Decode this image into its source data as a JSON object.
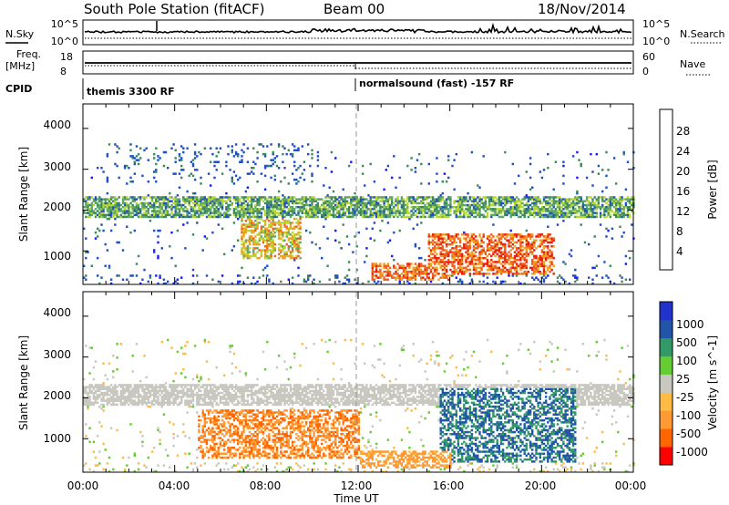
{
  "header": {
    "station": "South Pole Station (fitACF)",
    "beam": "Beam 00",
    "date": "18/Nov/2014"
  },
  "strip_labels": {
    "nsky": "N.Sky",
    "nsky_ticks": [
      "10^5",
      "10^0"
    ],
    "nsearch": "N.Search",
    "nsearch_ticks": [
      "10^5",
      "10^0"
    ],
    "freq_top": "Freq.",
    "freq_unit": "[MHz]",
    "freq_ticks": [
      "18",
      "8"
    ],
    "nave": "Nave",
    "nave_ticks": [
      "60",
      "0"
    ],
    "cpid": "CPID",
    "cpid_segments": [
      "themis 3300 RF",
      "normalsound (fast) -157 RF"
    ]
  },
  "axes": {
    "xlabel": "Time UT",
    "x_ticks": [
      "00:00",
      "04:00",
      "08:00",
      "12:00",
      "16:00",
      "20:00",
      "00:00"
    ],
    "ylabel": "Slant Range [km]",
    "y_ticks": [
      "1000",
      "2000",
      "3000",
      "4000"
    ],
    "power_label": "Power [dB]",
    "power_ticks": [
      "4",
      "8",
      "12",
      "16",
      "20",
      "24",
      "28"
    ],
    "velocity_label": "Velocity [m s^-1]",
    "velocity_ticks": [
      "-1000",
      "-500",
      "-100",
      "-25",
      "25",
      "100",
      "500",
      "1000"
    ]
  },
  "colors": {
    "power_scale": [
      "#1a1aff",
      "#2050c8",
      "#3e8a5c",
      "#5fa86a",
      "#b8d830",
      "#f0a020",
      "#f06020",
      "#e82010"
    ],
    "velocity_scale": [
      "#ff0000",
      "#ff6600",
      "#ff9933",
      "#ffbb44",
      "#c8c8c0",
      "#66cc33",
      "#339966",
      "#2255aa",
      "#2233cc"
    ],
    "background": "#ffffff"
  },
  "chart_data": [
    {
      "type": "heatmap",
      "title": "Power",
      "xlabel": "Time UT",
      "ylabel": "Slant Range [km]",
      "xlim": [
        0,
        24
      ],
      "ylim": [
        180,
        4600
      ],
      "colorbar": {
        "label": "Power [dB]",
        "range": [
          0,
          32
        ],
        "ticks": [
          4,
          8,
          12,
          16,
          20,
          24,
          28
        ]
      },
      "features": [
        {
          "name": "band_2000km",
          "t_start": 0.0,
          "t_end": 24.0,
          "range_km": [
            1800,
            2300
          ],
          "power_db": [
            6,
            20
          ]
        },
        {
          "name": "morning_patch",
          "t_start": 6.8,
          "t_end": 9.5,
          "range_km": [
            800,
            1800
          ],
          "power_db": [
            14,
            26
          ]
        },
        {
          "name": "near_range_post_noon",
          "t_start": 12.5,
          "t_end": 16.0,
          "range_km": [
            250,
            700
          ],
          "power_db": [
            20,
            30
          ]
        },
        {
          "name": "evening_patch",
          "t_start": 15.0,
          "t_end": 20.5,
          "range_km": [
            400,
            1400
          ],
          "power_db": [
            20,
            32
          ]
        },
        {
          "name": "scatter_3000km",
          "t_start": 1.0,
          "t_end": 10.0,
          "range_km": [
            2600,
            3600
          ],
          "power_db": [
            4,
            10
          ]
        }
      ]
    },
    {
      "type": "heatmap",
      "title": "Velocity",
      "xlabel": "Time UT",
      "ylabel": "Slant Range [km]",
      "xlim": [
        0,
        24
      ],
      "ylim": [
        180,
        4600
      ],
      "colorbar": {
        "label": "Velocity [m s^-1]",
        "range": [
          -1000,
          1000
        ],
        "ticks": [
          -1000,
          -500,
          -100,
          -25,
          25,
          100,
          500,
          1000
        ]
      },
      "features": [
        {
          "name": "ground_scatter_band",
          "t_start": 0.0,
          "t_end": 24.0,
          "range_km": [
            1800,
            2300
          ],
          "velocity": [
            -25,
            25
          ]
        },
        {
          "name": "negative_flow_morning",
          "t_start": 5.0,
          "t_end": 12.0,
          "range_km": [
            500,
            1700
          ],
          "velocity": [
            -800,
            -100
          ]
        },
        {
          "name": "positive_flow_evening",
          "t_start": 15.5,
          "t_end": 21.5,
          "range_km": [
            400,
            2200
          ],
          "velocity": [
            100,
            1000
          ]
        },
        {
          "name": "near_range_negative",
          "t_start": 12.0,
          "t_end": 16.0,
          "range_km": [
            250,
            700
          ],
          "velocity": [
            -500,
            -25
          ]
        }
      ]
    }
  ]
}
